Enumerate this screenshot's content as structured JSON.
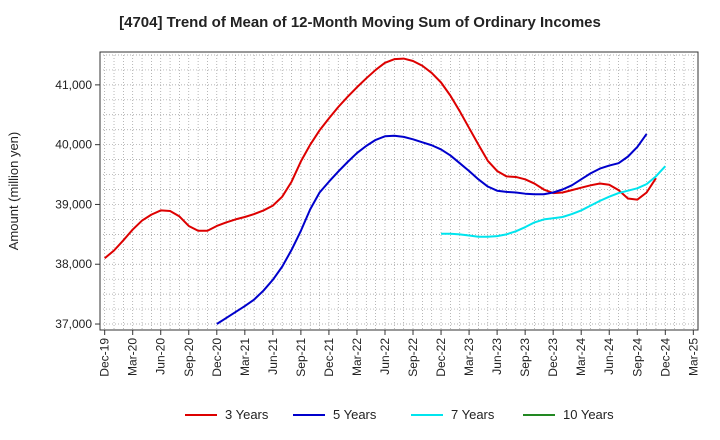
{
  "chart_data": {
    "type": "line",
    "title": "[4704]  Trend of Mean of 12-Month Moving Sum of Ordinary Incomes",
    "xlabel": "",
    "ylabel": "Amount (million yen)",
    "ylim": [
      36900,
      41550
    ],
    "yticks": [
      37000,
      38000,
      39000,
      40000,
      41000
    ],
    "ytick_labels": [
      "37,000",
      "38,000",
      "39,000",
      "40,000",
      "41,000"
    ],
    "xtick_labels": [
      "Dec-19",
      "Mar-20",
      "Jun-20",
      "Sep-20",
      "Dec-20",
      "Mar-21",
      "Jun-21",
      "Sep-21",
      "Dec-21",
      "Mar-22",
      "Jun-22",
      "Sep-22",
      "Dec-22",
      "Mar-23",
      "Jun-23",
      "Sep-23",
      "Dec-23",
      "Mar-24",
      "Jun-24",
      "Sep-24",
      "Dec-24",
      "Mar-25"
    ],
    "start_month": "Dec-19",
    "num_months": 64,
    "grid": true,
    "legend_position": "bottom",
    "series": [
      {
        "name": "3 Years",
        "color": "#dd0000",
        "start": 0,
        "values": [
          38100,
          38230,
          38400,
          38580,
          38730,
          38830,
          38900,
          38890,
          38800,
          38640,
          38560,
          38560,
          38640,
          38700,
          38750,
          38790,
          38840,
          38900,
          38980,
          39130,
          39380,
          39720,
          40000,
          40240,
          40440,
          40630,
          40800,
          40960,
          41110,
          41250,
          41370,
          41430,
          41440,
          41400,
          41320,
          41200,
          41040,
          40820,
          40560,
          40280,
          40000,
          39730,
          39560,
          39470,
          39460,
          39420,
          39350,
          39250,
          39190,
          39200,
          39240,
          39280,
          39320,
          39350,
          39330,
          39240,
          39100,
          39080,
          39200,
          39440
        ]
      },
      {
        "name": "5 Years",
        "color": "#0000cc",
        "start": 12,
        "values": [
          37000,
          37100,
          37200,
          37300,
          37410,
          37560,
          37740,
          37960,
          38240,
          38560,
          38920,
          39200,
          39380,
          39550,
          39710,
          39860,
          39980,
          40080,
          40140,
          40150,
          40130,
          40090,
          40040,
          39990,
          39920,
          39820,
          39690,
          39560,
          39420,
          39300,
          39230,
          39210,
          39200,
          39180,
          39170,
          39170,
          39200,
          39250,
          39320,
          39420,
          39520,
          39600,
          39650,
          39690,
          39800,
          39960,
          40180
        ]
      },
      {
        "name": "7 Years",
        "color": "#00e5ee",
        "start": 36,
        "values": [
          38510,
          38510,
          38500,
          38480,
          38460,
          38460,
          38470,
          38500,
          38550,
          38620,
          38700,
          38750,
          38770,
          38790,
          38840,
          38900,
          38980,
          39060,
          39130,
          39190,
          39230,
          39270,
          39340,
          39470,
          39640
        ]
      },
      {
        "name": "10 Years",
        "color": "#228822",
        "start": 0,
        "values": []
      }
    ]
  }
}
